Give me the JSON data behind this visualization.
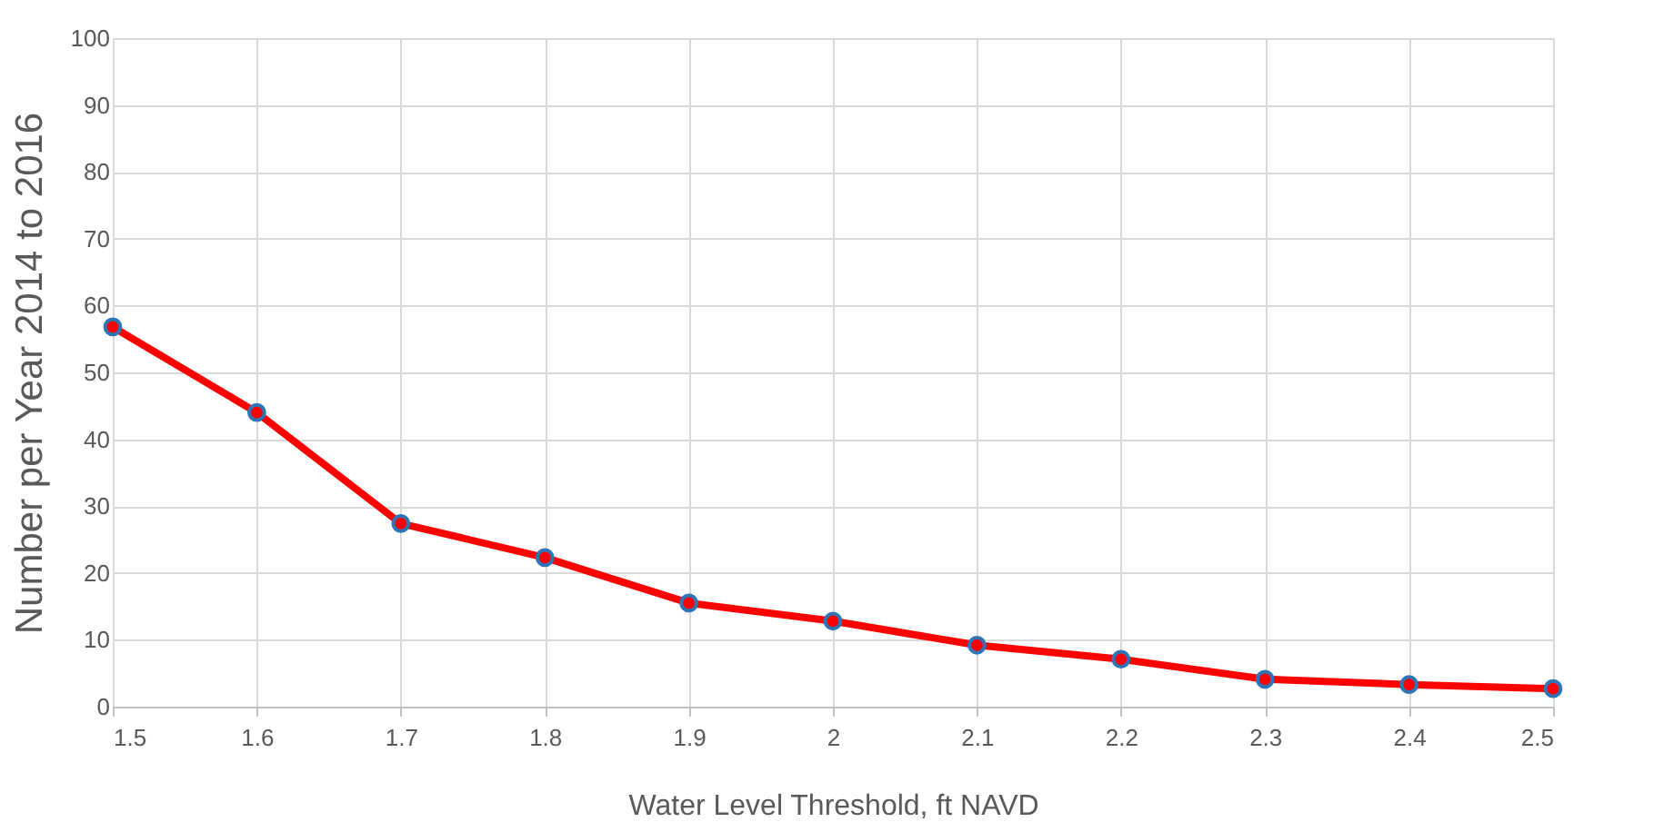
{
  "chart_data": {
    "type": "line",
    "xlabel": "Water Level Threshold, ft NAVD",
    "ylabel": "Number per Year 2014 to 2016",
    "x": [
      1.5,
      1.6,
      1.7,
      1.8,
      1.9,
      2.0,
      2.1,
      2.2,
      2.3,
      2.4,
      2.5
    ],
    "series": [
      {
        "color": "#ff0000",
        "values": [
          56.8,
          44,
          27.4,
          22.3,
          15.5,
          12.8,
          9.2,
          7.1,
          4.1,
          3.3,
          2.7
        ]
      }
    ],
    "xlim": [
      1.5,
      2.5
    ],
    "xticks": [
      1.5,
      1.6,
      1.7,
      1.8,
      1.9,
      2,
      2.1,
      2.2,
      2.3,
      2.4,
      2.5
    ],
    "ylim": [
      0,
      100
    ],
    "yticks": [
      0,
      10,
      20,
      30,
      40,
      50,
      60,
      70,
      80,
      90,
      100
    ],
    "grid": true,
    "marker": "circle",
    "line_style": "solid"
  }
}
